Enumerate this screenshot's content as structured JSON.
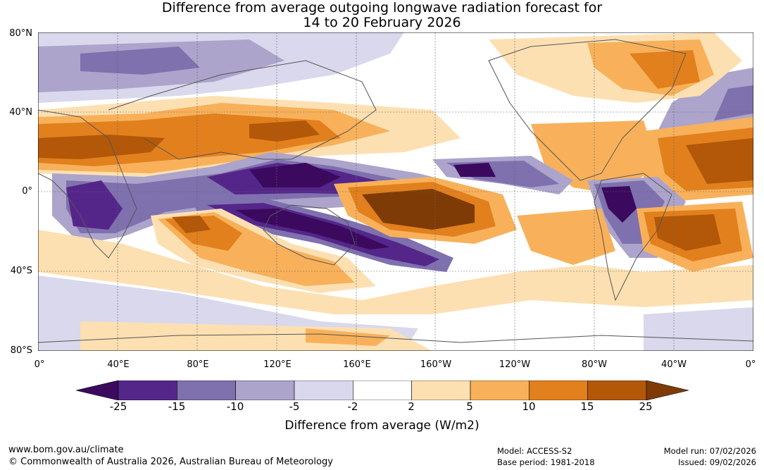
{
  "title_line1": "Difference from average outgoing longwave radiation forecast for",
  "title_line2": "14 to 20 February 2026",
  "lat_labels": [
    "80°N",
    "40°N",
    "0°",
    "40°S",
    "80°S"
  ],
  "lon_labels": [
    "0°",
    "40°E",
    "80°E",
    "120°E",
    "160°E",
    "160°W",
    "120°W",
    "80°W",
    "40°W",
    "0°"
  ],
  "colorbar": {
    "ticks": [
      "-25",
      "-15",
      "-10",
      "-5",
      "-2",
      "2",
      "5",
      "10",
      "15",
      "25"
    ],
    "colors": [
      "#3b0a5e",
      "#55268a",
      "#7f70ae",
      "#ada4cc",
      "#d9d8ec",
      "#ffffff",
      "#fde0b2",
      "#f8b15a",
      "#e2801d",
      "#b35808",
      "#7f3b05"
    ],
    "title": "Difference from average (W/m2)"
  },
  "footer": {
    "url": "www.bom.gov.au/climate",
    "copyright": "© Commonwealth of Australia 2026, Australian Bureau of Meteorology",
    "model": "Model: ACCESS-S2",
    "base_period": "Base period: 1981-2018",
    "model_run": "Model run: 07/02/2026",
    "issued": "Issued: 09/02/2026"
  }
}
